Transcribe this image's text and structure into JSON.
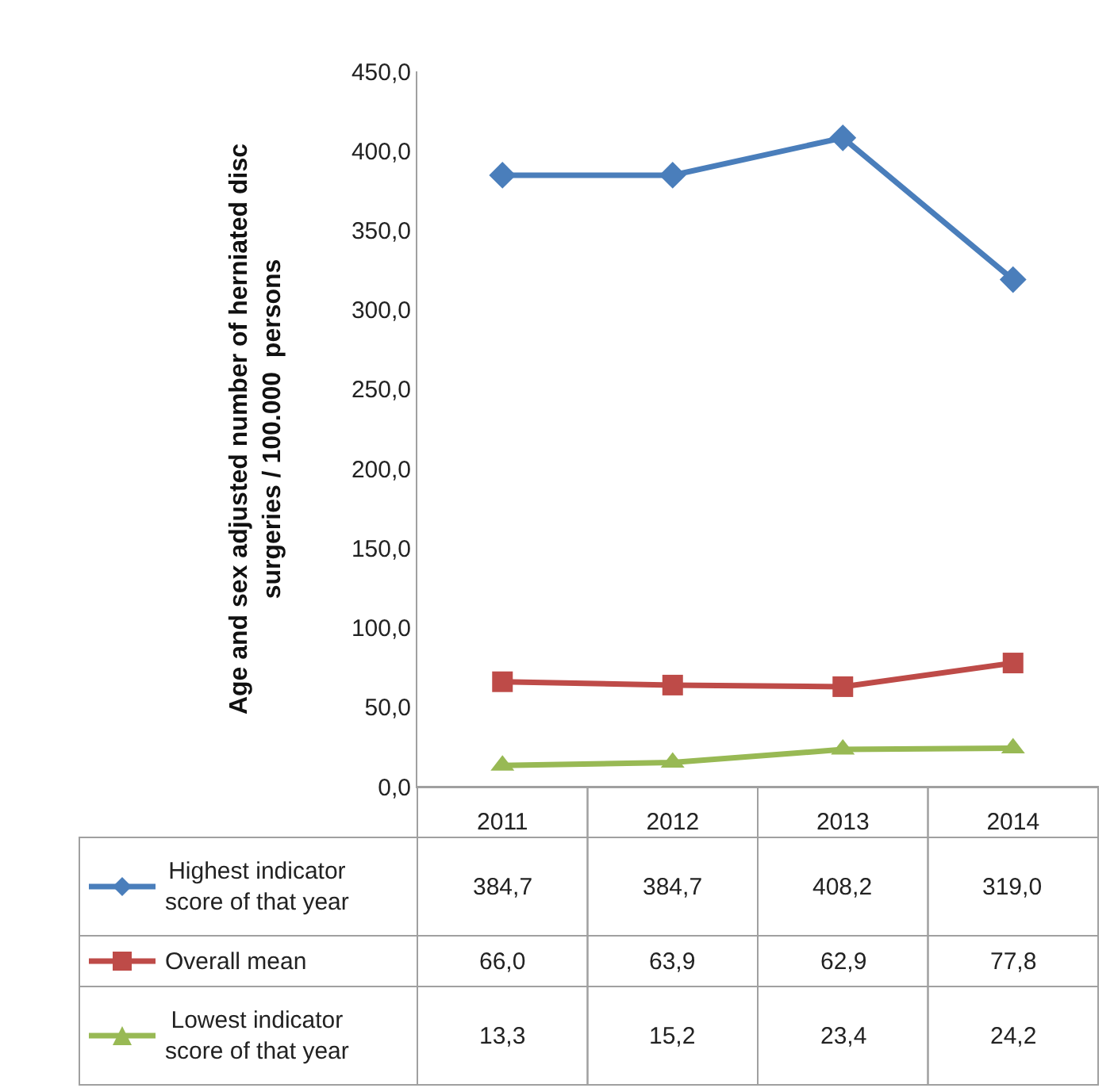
{
  "chart_data": {
    "type": "line",
    "ylabel": "Age and sex adjusted number of herniated disc\nsurgeries / 100.000  persons",
    "categories": [
      "2011",
      "2012",
      "2013",
      "2014"
    ],
    "series": [
      {
        "name": "Highest indicator score of that year",
        "color": "#4a7ebb",
        "marker": "diamond",
        "values": [
          384.7,
          384.7,
          408.2,
          319.0
        ],
        "value_labels": [
          "384,7",
          "384,7",
          "408,2",
          "319,0"
        ]
      },
      {
        "name": "Overall mean",
        "color": "#be4b48",
        "marker": "square",
        "values": [
          66.0,
          63.9,
          62.9,
          77.8
        ],
        "value_labels": [
          "66,0",
          "63,9",
          "62,9",
          "77,8"
        ]
      },
      {
        "name": "Lowest indicator score of that year",
        "color": "#98b954",
        "marker": "triangle",
        "values": [
          13.3,
          15.2,
          23.4,
          24.2
        ],
        "value_labels": [
          "13,3",
          "15,2",
          "23,4",
          "24,2"
        ]
      }
    ],
    "ylim": [
      0,
      450
    ],
    "yticks": [
      {
        "value": 0,
        "label": "0,0"
      },
      {
        "value": 50,
        "label": "50,0"
      },
      {
        "value": 100,
        "label": "100,0"
      },
      {
        "value": 150,
        "label": "150,0"
      },
      {
        "value": 200,
        "label": "200,0"
      },
      {
        "value": 250,
        "label": "250,0"
      },
      {
        "value": 300,
        "label": "300,0"
      },
      {
        "value": 350,
        "label": "350,0"
      },
      {
        "value": 400,
        "label": "400,0"
      },
      {
        "value": 450,
        "label": "450,0"
      }
    ],
    "grid": false,
    "legend": "bottom left"
  }
}
